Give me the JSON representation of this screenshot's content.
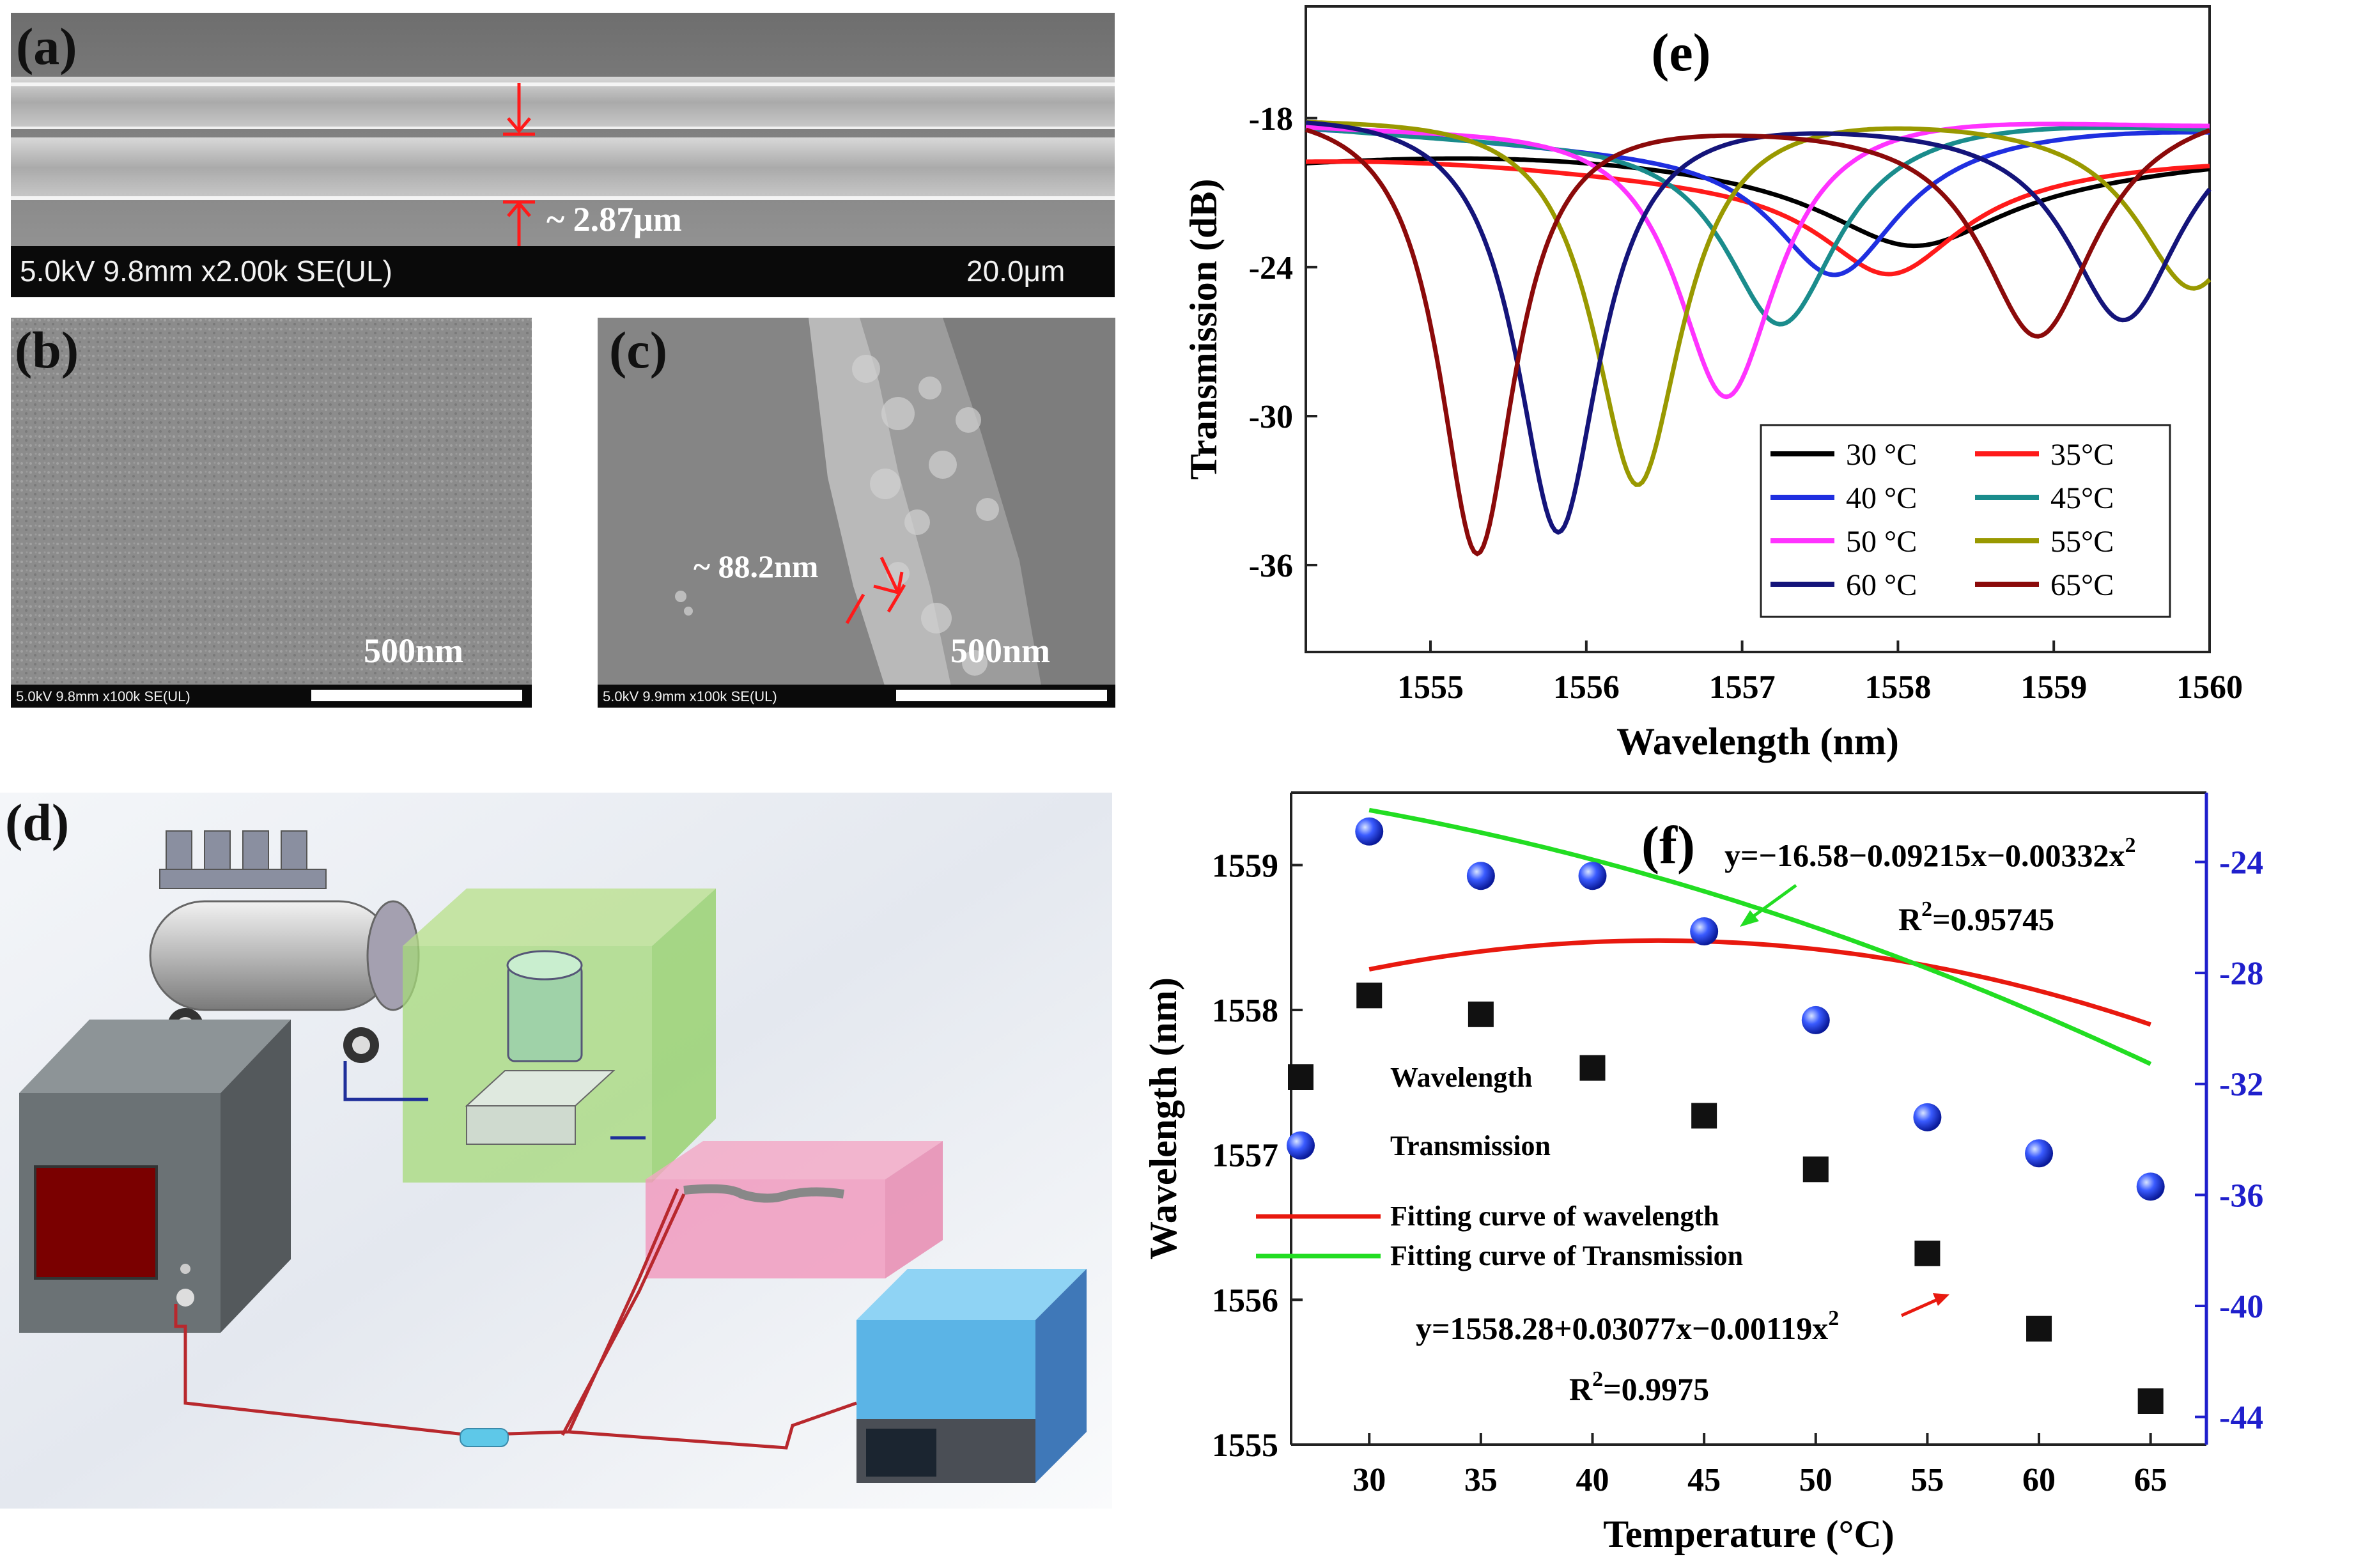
{
  "panel_a": {
    "label": "(a)",
    "annotation": "~ 2.87μm",
    "sem_info": "5.0kV 9.8mm x2.00k SE(UL)",
    "scale_label": "20.0μm"
  },
  "panel_b": {
    "label": "(b)",
    "scale_label": "500nm",
    "sem_info": "5.0kV 9.8mm x100k SE(UL)"
  },
  "panel_c": {
    "label": "(c)",
    "annotation": "~ 88.2nm",
    "scale_label": "500nm",
    "sem_info": "5.0kV 9.9mm x100k SE(UL)"
  },
  "panel_d": {
    "label": "(d)"
  },
  "colors": {
    "black": "#000000",
    "red": "#ff1a1a",
    "blue": "#1f2fe0",
    "teal": "#1a8c8c",
    "magenta": "#ff33ff",
    "olive": "#999900",
    "navy": "#14147a",
    "darkred": "#8b0a0a",
    "fit_red": "#e8190f",
    "fit_green": "#22dd22",
    "right_axis": "#1f1fcc"
  },
  "chart_data": [
    {
      "type": "line",
      "panel_label": "(e)",
      "xlabel": "Wavelength (nm)",
      "ylabel": "Transmission (dB)",
      "xlim": [
        1554.2,
        1560
      ],
      "ylim": [
        -39.5,
        -13.5
      ],
      "xticks": [
        1555,
        1556,
        1557,
        1558,
        1559,
        1560
      ],
      "yticks": [
        -18,
        -24,
        -30,
        -36
      ],
      "legend_position": "bottom-right",
      "series": [
        {
          "name": "30 °C",
          "color": "#000000",
          "base": -19.8,
          "dips": [
            {
              "center": 1558.1,
              "depth": 3.0,
              "width": 0.7
            }
          ]
        },
        {
          "name": "35°C",
          "color": "#ff1a1a",
          "base": -20.0,
          "dips": [
            {
              "center": 1557.95,
              "depth": 4.0,
              "width": 0.55
            }
          ]
        },
        {
          "name": "40 °C",
          "color": "#1f2fe0",
          "base": -18.6,
          "dips": [
            {
              "center": 1557.6,
              "depth": 5.6,
              "width": 0.5
            }
          ]
        },
        {
          "name": "45°C",
          "color": "#1a8c8c",
          "base": -18.2,
          "dips": [
            {
              "center": 1557.25,
              "depth": 8.2,
              "width": 0.45
            }
          ]
        },
        {
          "name": "50 °C",
          "color": "#ff33ff",
          "base": -17.8,
          "dips": [
            {
              "center": 1556.9,
              "depth": 11.7,
              "width": 0.4
            }
          ]
        },
        {
          "name": "55°C",
          "color": "#999900",
          "base": -17.4,
          "dips": [
            {
              "center": 1556.33,
              "depth": 15.6,
              "width": 0.35
            },
            {
              "center": 1559.9,
              "depth": 7.0,
              "width": 0.45
            }
          ]
        },
        {
          "name": "60 °C",
          "color": "#14147a",
          "base": -17.4,
          "dips": [
            {
              "center": 1555.82,
              "depth": 17.5,
              "width": 0.33
            },
            {
              "center": 1559.45,
              "depth": 8.4,
              "width": 0.45
            }
          ]
        },
        {
          "name": "65°C",
          "color": "#8b0a0a",
          "base": -17.4,
          "dips": [
            {
              "center": 1555.3,
              "depth": 18.3,
              "width": 0.3
            },
            {
              "center": 1558.9,
              "depth": 9.2,
              "width": 0.45
            }
          ]
        }
      ]
    },
    {
      "type": "scatter",
      "panel_label": "(f)",
      "xlabel": "Temperature (°C)",
      "ylabel_left": "Wavelength (nm)",
      "ylabel_right": "Transmission (dB)",
      "xlim": [
        26.5,
        67.5
      ],
      "ylim_left": [
        1555,
        1559.5
      ],
      "ylim_right": [
        -45,
        -21.5
      ],
      "xticks": [
        30,
        35,
        40,
        45,
        50,
        55,
        60,
        65
      ],
      "yticks_left": [
        1555,
        1556,
        1557,
        1558,
        1559
      ],
      "yticks_right": [
        -24,
        -28,
        -32,
        -36,
        -40,
        -44
      ],
      "x": [
        30,
        35,
        40,
        45,
        50,
        55,
        60,
        65
      ],
      "wavelength": [
        1558.1,
        1557.97,
        1557.6,
        1557.27,
        1556.9,
        1556.32,
        1555.8,
        1555.3
      ],
      "transmission": [
        -22.9,
        -24.5,
        -24.5,
        -26.5,
        -29.7,
        -33.2,
        -34.5,
        -35.7
      ],
      "legend": [
        "Wavelength",
        "Transmission",
        "Fitting curve of wavelength",
        "Fitting curve of Transmission"
      ],
      "fit_wavelength": {
        "a": 1558.28,
        "b": 0.03077,
        "c": -0.00119
      },
      "fit_transmission": {
        "a": -16.58,
        "b": -0.09215,
        "c": -0.00332
      },
      "eq_transmission": "y=−16.58−0.09215x−0.00332x",
      "r2_transmission": "=0.95745",
      "eq_wavelength": "y=1558.28+0.03077x−0.00119x",
      "r2_wavelength": "=0.9975",
      "r2_prefix": "R",
      "superscript": "2"
    }
  ]
}
